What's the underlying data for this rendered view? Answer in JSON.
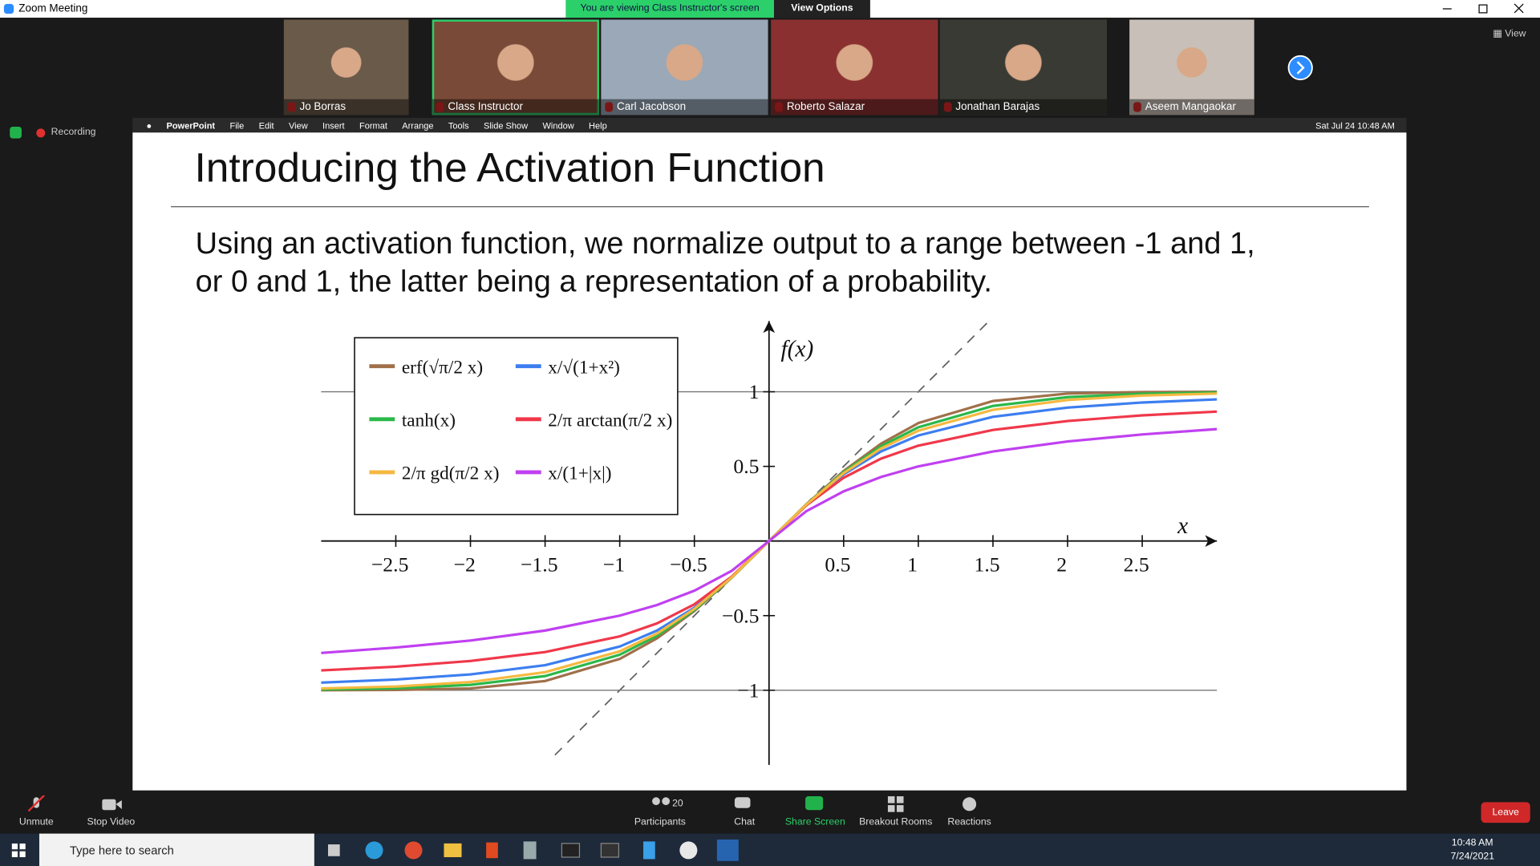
{
  "window": {
    "title": "Zoom Meeting",
    "banner": "You are viewing Class Instructor's screen",
    "view_options": "View Options",
    "view": "View"
  },
  "participants": [
    "Jo Borras",
    "Class Instructor",
    "Carl Jacobson",
    "Roberto Salazar",
    "Jonathan Barajas",
    "Aseem Mangaokar"
  ],
  "recording": "Recording",
  "mac_menu": {
    "app": "PowerPoint",
    "items": [
      "File",
      "Edit",
      "View",
      "Insert",
      "Format",
      "Arrange",
      "Tools",
      "Slide Show",
      "Window",
      "Help"
    ],
    "clock": "Sat Jul 24  10:48 AM"
  },
  "slide": {
    "title": "Introducing the Activation Function",
    "body": [
      "Using an activation function, we normalize output to a range between -1 and 1,",
      "or 0 and 1, the latter being a representation of a probability."
    ],
    "chart": {
      "type": "line",
      "x_label": "x",
      "y_label": "f(x)",
      "x": [
        -3,
        -2.5,
        -2,
        -1.5,
        -1,
        -0.75,
        -0.5,
        -0.25,
        0,
        0.25,
        0.5,
        0.75,
        1,
        1.5,
        2,
        2.5,
        3
      ],
      "series": [
        {
          "name": "erf(√π/2 x)",
          "color": "#a0704a",
          "values": [
            -1.0,
            -0.998,
            -0.988,
            -0.938,
            -0.79,
            -0.652,
            -0.469,
            -0.246,
            0,
            0.246,
            0.469,
            0.652,
            0.79,
            0.938,
            0.988,
            0.998,
            1.0
          ]
        },
        {
          "name": "x/√(1+x²)",
          "color": "#3c7ef0",
          "values": [
            -0.949,
            -0.928,
            -0.894,
            -0.832,
            -0.707,
            -0.6,
            -0.447,
            -0.243,
            0,
            0.243,
            0.447,
            0.6,
            0.707,
            0.832,
            0.894,
            0.928,
            0.949
          ]
        },
        {
          "name": "tanh(x)",
          "color": "#2ab84a",
          "values": [
            -0.995,
            -0.987,
            -0.964,
            -0.905,
            -0.762,
            -0.635,
            -0.462,
            -0.245,
            0,
            0.245,
            0.462,
            0.635,
            0.762,
            0.905,
            0.964,
            0.987,
            0.995
          ]
        },
        {
          "name": "2/π arctan(π/2 x)",
          "color": "#f0384a",
          "values": [
            -0.867,
            -0.842,
            -0.804,
            -0.744,
            -0.639,
            -0.552,
            -0.424,
            -0.239,
            0,
            0.239,
            0.424,
            0.552,
            0.639,
            0.744,
            0.804,
            0.842,
            0.867
          ]
        },
        {
          "name": "2/π gd(π/2 x)",
          "color": "#f5b840",
          "values": [
            -0.988,
            -0.975,
            -0.945,
            -0.879,
            -0.739,
            -0.62,
            -0.455,
            -0.244,
            0,
            0.244,
            0.455,
            0.62,
            0.739,
            0.879,
            0.945,
            0.975,
            0.988
          ]
        },
        {
          "name": "x/(1+|x|)",
          "color": "#c040f0",
          "values": [
            -0.75,
            -0.714,
            -0.667,
            -0.6,
            -0.5,
            -0.429,
            -0.333,
            -0.2,
            0,
            0.2,
            0.333,
            0.429,
            0.5,
            0.6,
            0.667,
            0.714,
            0.75
          ]
        }
      ],
      "xlim": [
        -3,
        3
      ],
      "ylim": [
        -1.5,
        1.5
      ],
      "xticks": [
        {
          "value": -2.5,
          "label": "−2.5"
        },
        {
          "value": -2,
          "label": "−2"
        },
        {
          "value": -1.5,
          "label": "−1.5"
        },
        {
          "value": -1,
          "label": "−1"
        },
        {
          "value": -0.5,
          "label": "−0.5"
        },
        0.5,
        1,
        1.5,
        2,
        2.5
      ],
      "yticks": [
        {
          "value": -1,
          "label": "−1"
        },
        {
          "value": -0.5,
          "label": "−0.5"
        },
        0.5,
        1
      ],
      "asymptotes": [
        -1,
        1
      ]
    }
  },
  "toolbar": {
    "unmute": "Unmute",
    "stop_video": "Stop Video",
    "participants": "Participants",
    "participant_count": 20,
    "chat": "Chat",
    "share_screen": "Share Screen",
    "breakout_rooms": "Breakout Rooms",
    "reactions": "Reactions",
    "leave": "Leave"
  },
  "taskbar": {
    "search": "Type here to search",
    "time": "10:48 AM",
    "date": "7/24/2021"
  }
}
